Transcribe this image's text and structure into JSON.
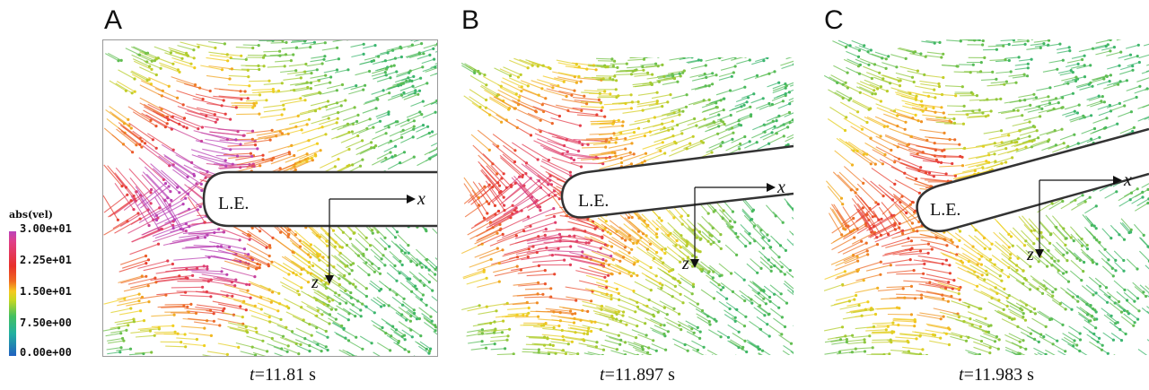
{
  "panels": [
    {
      "letter": "A",
      "caption_var": "t",
      "caption_rest": "=11.81 s",
      "le_label": "L.E.",
      "x_axis": "x",
      "z_axis": "z"
    },
    {
      "letter": "B",
      "caption_var": "t",
      "caption_rest": "=11.897 s",
      "le_label": "L.E.",
      "x_axis": "x",
      "z_axis": "z"
    },
    {
      "letter": "C",
      "caption_var": "t",
      "caption_rest": "=11.983 s",
      "le_label": "L.E.",
      "x_axis": "x",
      "z_axis": "z"
    }
  ],
  "legend": {
    "title": "abs(vel)",
    "ticks": [
      "3.00e+01",
      "2.25e+01",
      "1.50e+01",
      "7.50e+00",
      "0.00e+00"
    ]
  },
  "colors": {
    "fast": "#e0402a",
    "peak": "#b044c8",
    "mid": "#f2c820",
    "slow": "#4cb850",
    "outline": "#333333"
  }
}
